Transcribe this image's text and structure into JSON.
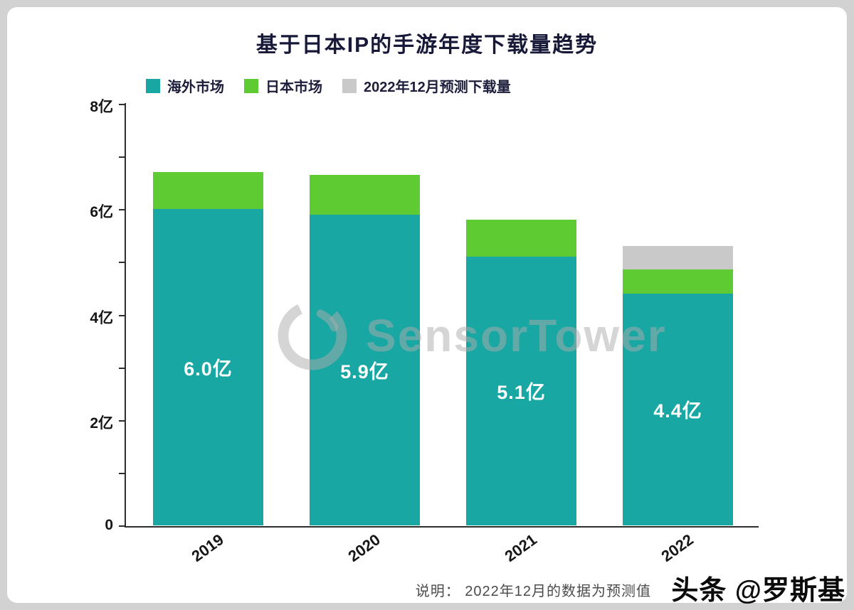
{
  "title": "基于日本IP的手游年度下载量趋势",
  "colors": {
    "overseas": "#19a7a4",
    "japan": "#5dcb31",
    "forecast": "#c9c9c9",
    "axis": "#2e2e2e",
    "title_text": "#181838",
    "frame_bg": "#d2d2d2",
    "panel_bg": "#ffffff"
  },
  "chart_data": {
    "type": "bar",
    "stacked": true,
    "title": "基于日本IP的手游年度下载量趋势",
    "categories": [
      "2019",
      "2020",
      "2021",
      "2022"
    ],
    "series": [
      {
        "name": "海外市场",
        "color": "#19a7a4",
        "values": [
          6.0,
          5.9,
          5.1,
          4.4
        ]
      },
      {
        "name": "日本市场",
        "color": "#5dcb31",
        "values": [
          0.7,
          0.75,
          0.7,
          0.45
        ]
      },
      {
        "name": "2022年12月预测下载量",
        "color": "#c9c9c9",
        "values": [
          0,
          0,
          0,
          0.45
        ]
      }
    ],
    "bar_value_labels": [
      "6.0亿",
      "5.9亿",
      "5.1亿",
      "4.4亿"
    ],
    "unit": "亿",
    "ylim": [
      0,
      8
    ],
    "yticks_labels": [
      "0",
      "2亿",
      "4亿",
      "6亿",
      "8亿"
    ],
    "grid": false,
    "legend_position": "top-left"
  },
  "watermark": {
    "text": "SensorTower"
  },
  "note": "说明： 2022年12月的数据为预测值",
  "footer_watermark": "头条 @罗斯基"
}
